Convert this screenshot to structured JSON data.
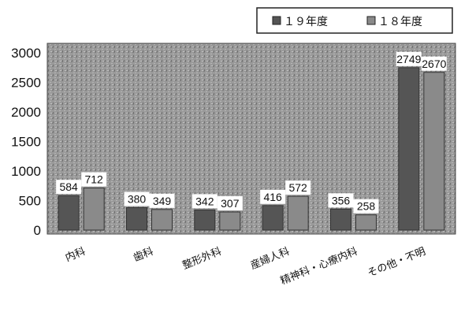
{
  "chart_data": {
    "type": "bar",
    "categories": [
      "内科",
      "歯科",
      "整形外科",
      "産婦人科",
      "精神科・心療内科",
      "その他・不明"
    ],
    "series": [
      {
        "name": "１９年度",
        "values": [
          584,
          380,
          342,
          416,
          356,
          2749
        ],
        "color": "#555555"
      },
      {
        "name": "１８年度",
        "values": [
          712,
          349,
          307,
          572,
          258,
          2670
        ],
        "color": "#8a8a8a"
      }
    ],
    "yticks": [
      "0",
      "500",
      "1000",
      "1500",
      "2000",
      "2500",
      "3000"
    ],
    "ylim": [
      0,
      3000
    ],
    "legend_position": "top-right",
    "plot_background": "#9c9c9c",
    "grid": false
  }
}
